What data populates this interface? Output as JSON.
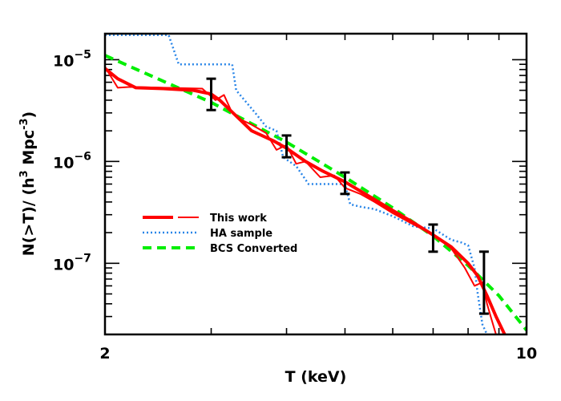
{
  "chart_data": {
    "type": "line",
    "title": "",
    "xlabel": "T (keV)",
    "ylabel_parts": [
      "N(>T)/ (h",
      "3",
      " Mpc",
      "-3",
      ")"
    ],
    "x_scale": "log",
    "y_scale": "log",
    "xlim": [
      2,
      10
    ],
    "ylim": [
      2e-08,
      1.8e-05
    ],
    "x_tick_labels": [
      {
        "value": 2,
        "text": "2"
      },
      {
        "value": 10,
        "text": "10"
      }
    ],
    "y_tick_labels": [
      {
        "value": 1e-05,
        "base": "10",
        "exp": "−5"
      },
      {
        "value": 1e-06,
        "base": "10",
        "exp": "−6"
      },
      {
        "value": 1e-07,
        "base": "10",
        "exp": "−7"
      }
    ],
    "legend_position": "lower-left",
    "series": [
      {
        "name": "This work",
        "color": "#ff0000",
        "style": "solid-thick",
        "x": [
          2.0,
          2.1,
          2.25,
          2.5,
          2.8,
          3.0,
          3.1,
          3.3,
          3.5,
          3.8,
          4.0,
          4.3,
          4.6,
          5.0,
          5.5,
          6.0,
          6.5,
          7.0,
          7.5,
          8.0,
          8.3,
          8.6,
          8.9,
          9.2
        ],
        "y": [
          8.2e-06,
          6.5e-06,
          5.3e-06,
          5.2e-06,
          5e-06,
          4.6e-06,
          4e-06,
          2.8e-06,
          2e-06,
          1.6e-06,
          1.35e-06,
          1e-06,
          8e-07,
          6.3e-07,
          4.5e-07,
          3.3e-07,
          2.5e-07,
          1.9e-07,
          1.45e-07,
          1e-07,
          7.5e-08,
          4.8e-08,
          3e-08,
          2e-08
        ]
      },
      {
        "name": "",
        "color": "#ff0000",
        "style": "solid-thin",
        "x": [
          2.0,
          2.1,
          2.2,
          2.5,
          2.9,
          3.05,
          3.15,
          3.25,
          3.35,
          3.5,
          3.7,
          3.85,
          4.0,
          4.15,
          4.3,
          4.55,
          4.8,
          5.0,
          5.3,
          5.6,
          6.0,
          6.5,
          7.0,
          7.5,
          7.9,
          8.2,
          8.45,
          8.6,
          8.75,
          8.9
        ],
        "y": [
          8.5e-06,
          5.3e-06,
          5.4e-06,
          5.3e-06,
          5.2e-06,
          4e-06,
          4.5e-06,
          3e-06,
          2.6e-06,
          2.3e-06,
          1.9e-06,
          1.3e-06,
          1.45e-06,
          9.5e-07,
          1e-06,
          7e-07,
          7.3e-07,
          5.5e-07,
          4.8e-07,
          4e-07,
          3.1e-07,
          2.4e-07,
          1.9e-07,
          1.4e-07,
          9e-08,
          6e-08,
          6.5e-08,
          4e-08,
          2.8e-08,
          2e-08
        ]
      },
      {
        "name": "HA sample",
        "color": "#2a86e8",
        "style": "dotted",
        "x": [
          2.0,
          2.55,
          2.65,
          3.25,
          3.3,
          3.55,
          3.7,
          3.85,
          3.95,
          4.15,
          4.35,
          5.0,
          5.1,
          5.3,
          5.6,
          6.0,
          6.5,
          7.0,
          7.5,
          7.8,
          8.0,
          8.2,
          8.3,
          8.45,
          8.6
        ],
        "y": [
          1.75e-05,
          1.75e-05,
          9e-06,
          9e-06,
          5e-06,
          3e-06,
          2.2e-06,
          2e-06,
          1.1e-06,
          9e-07,
          6e-07,
          6e-07,
          3.8e-07,
          3.6e-07,
          3.4e-07,
          2.9e-07,
          2.3e-07,
          2.2e-07,
          1.7e-07,
          1.6e-07,
          1.5e-07,
          9e-08,
          5e-08,
          2.5e-08,
          2e-08
        ]
      },
      {
        "name": "BCS Converted",
        "color": "#00ee00",
        "style": "dashed",
        "x": [
          2.0,
          3.0,
          4.0,
          5.0,
          6.0,
          7.0,
          8.0,
          9.0,
          10.0
        ],
        "y": [
          1.1e-05,
          3.8e-06,
          1.55e-06,
          7e-07,
          3.5e-07,
          1.85e-07,
          9.5e-08,
          4.8e-08,
          2.2e-08
        ]
      }
    ],
    "error_bars": [
      {
        "x": 3.0,
        "y": 4.5e-06,
        "lower": 3.2e-06,
        "upper": 6.5e-06
      },
      {
        "x": 4.0,
        "y": 1.4e-06,
        "lower": 1.1e-06,
        "upper": 1.8e-06
      },
      {
        "x": 5.0,
        "y": 6e-07,
        "lower": 4.8e-07,
        "upper": 7.8e-07
      },
      {
        "x": 7.0,
        "y": 1.8e-07,
        "lower": 1.3e-07,
        "upper": 2.4e-07
      },
      {
        "x": 8.5,
        "y": 6e-08,
        "lower": 3.2e-08,
        "upper": 1.3e-07
      }
    ]
  }
}
